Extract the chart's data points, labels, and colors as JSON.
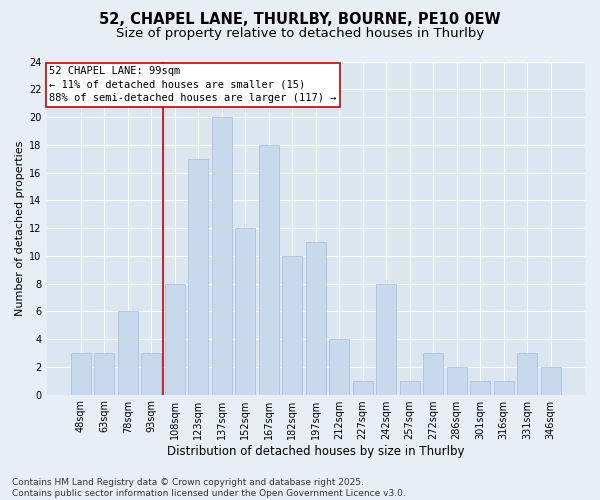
{
  "title1": "52, CHAPEL LANE, THURLBY, BOURNE, PE10 0EW",
  "title2": "Size of property relative to detached houses in Thurlby",
  "xlabel": "Distribution of detached houses by size in Thurlby",
  "ylabel": "Number of detached properties",
  "categories": [
    "48sqm",
    "63sqm",
    "78sqm",
    "93sqm",
    "108sqm",
    "123sqm",
    "137sqm",
    "152sqm",
    "167sqm",
    "182sqm",
    "197sqm",
    "212sqm",
    "227sqm",
    "242sqm",
    "257sqm",
    "272sqm",
    "286sqm",
    "301sqm",
    "316sqm",
    "331sqm",
    "346sqm"
  ],
  "values": [
    3,
    3,
    6,
    3,
    8,
    17,
    20,
    12,
    18,
    10,
    11,
    4,
    1,
    8,
    1,
    3,
    2,
    1,
    1,
    3,
    2
  ],
  "bar_color": "#c9d9ec",
  "bar_edge_color": "#a8c4df",
  "vline_color": "#cc0000",
  "annotation_text": "52 CHAPEL LANE: 99sqm\n← 11% of detached houses are smaller (15)\n88% of semi-detached houses are larger (117) →",
  "annotation_box_color": "#ffffff",
  "annotation_box_edge": "#cc0000",
  "ylim": [
    0,
    24
  ],
  "yticks": [
    0,
    2,
    4,
    6,
    8,
    10,
    12,
    14,
    16,
    18,
    20,
    22,
    24
  ],
  "bg_color": "#e8eef5",
  "plot_bg_color": "#dce6f0",
  "footer": "Contains HM Land Registry data © Crown copyright and database right 2025.\nContains public sector information licensed under the Open Government Licence v3.0.",
  "title_fontsize": 10.5,
  "subtitle_fontsize": 9.5,
  "tick_fontsize": 7,
  "ylabel_fontsize": 8,
  "xlabel_fontsize": 8.5,
  "footer_fontsize": 6.5,
  "annotation_fontsize": 7.5
}
